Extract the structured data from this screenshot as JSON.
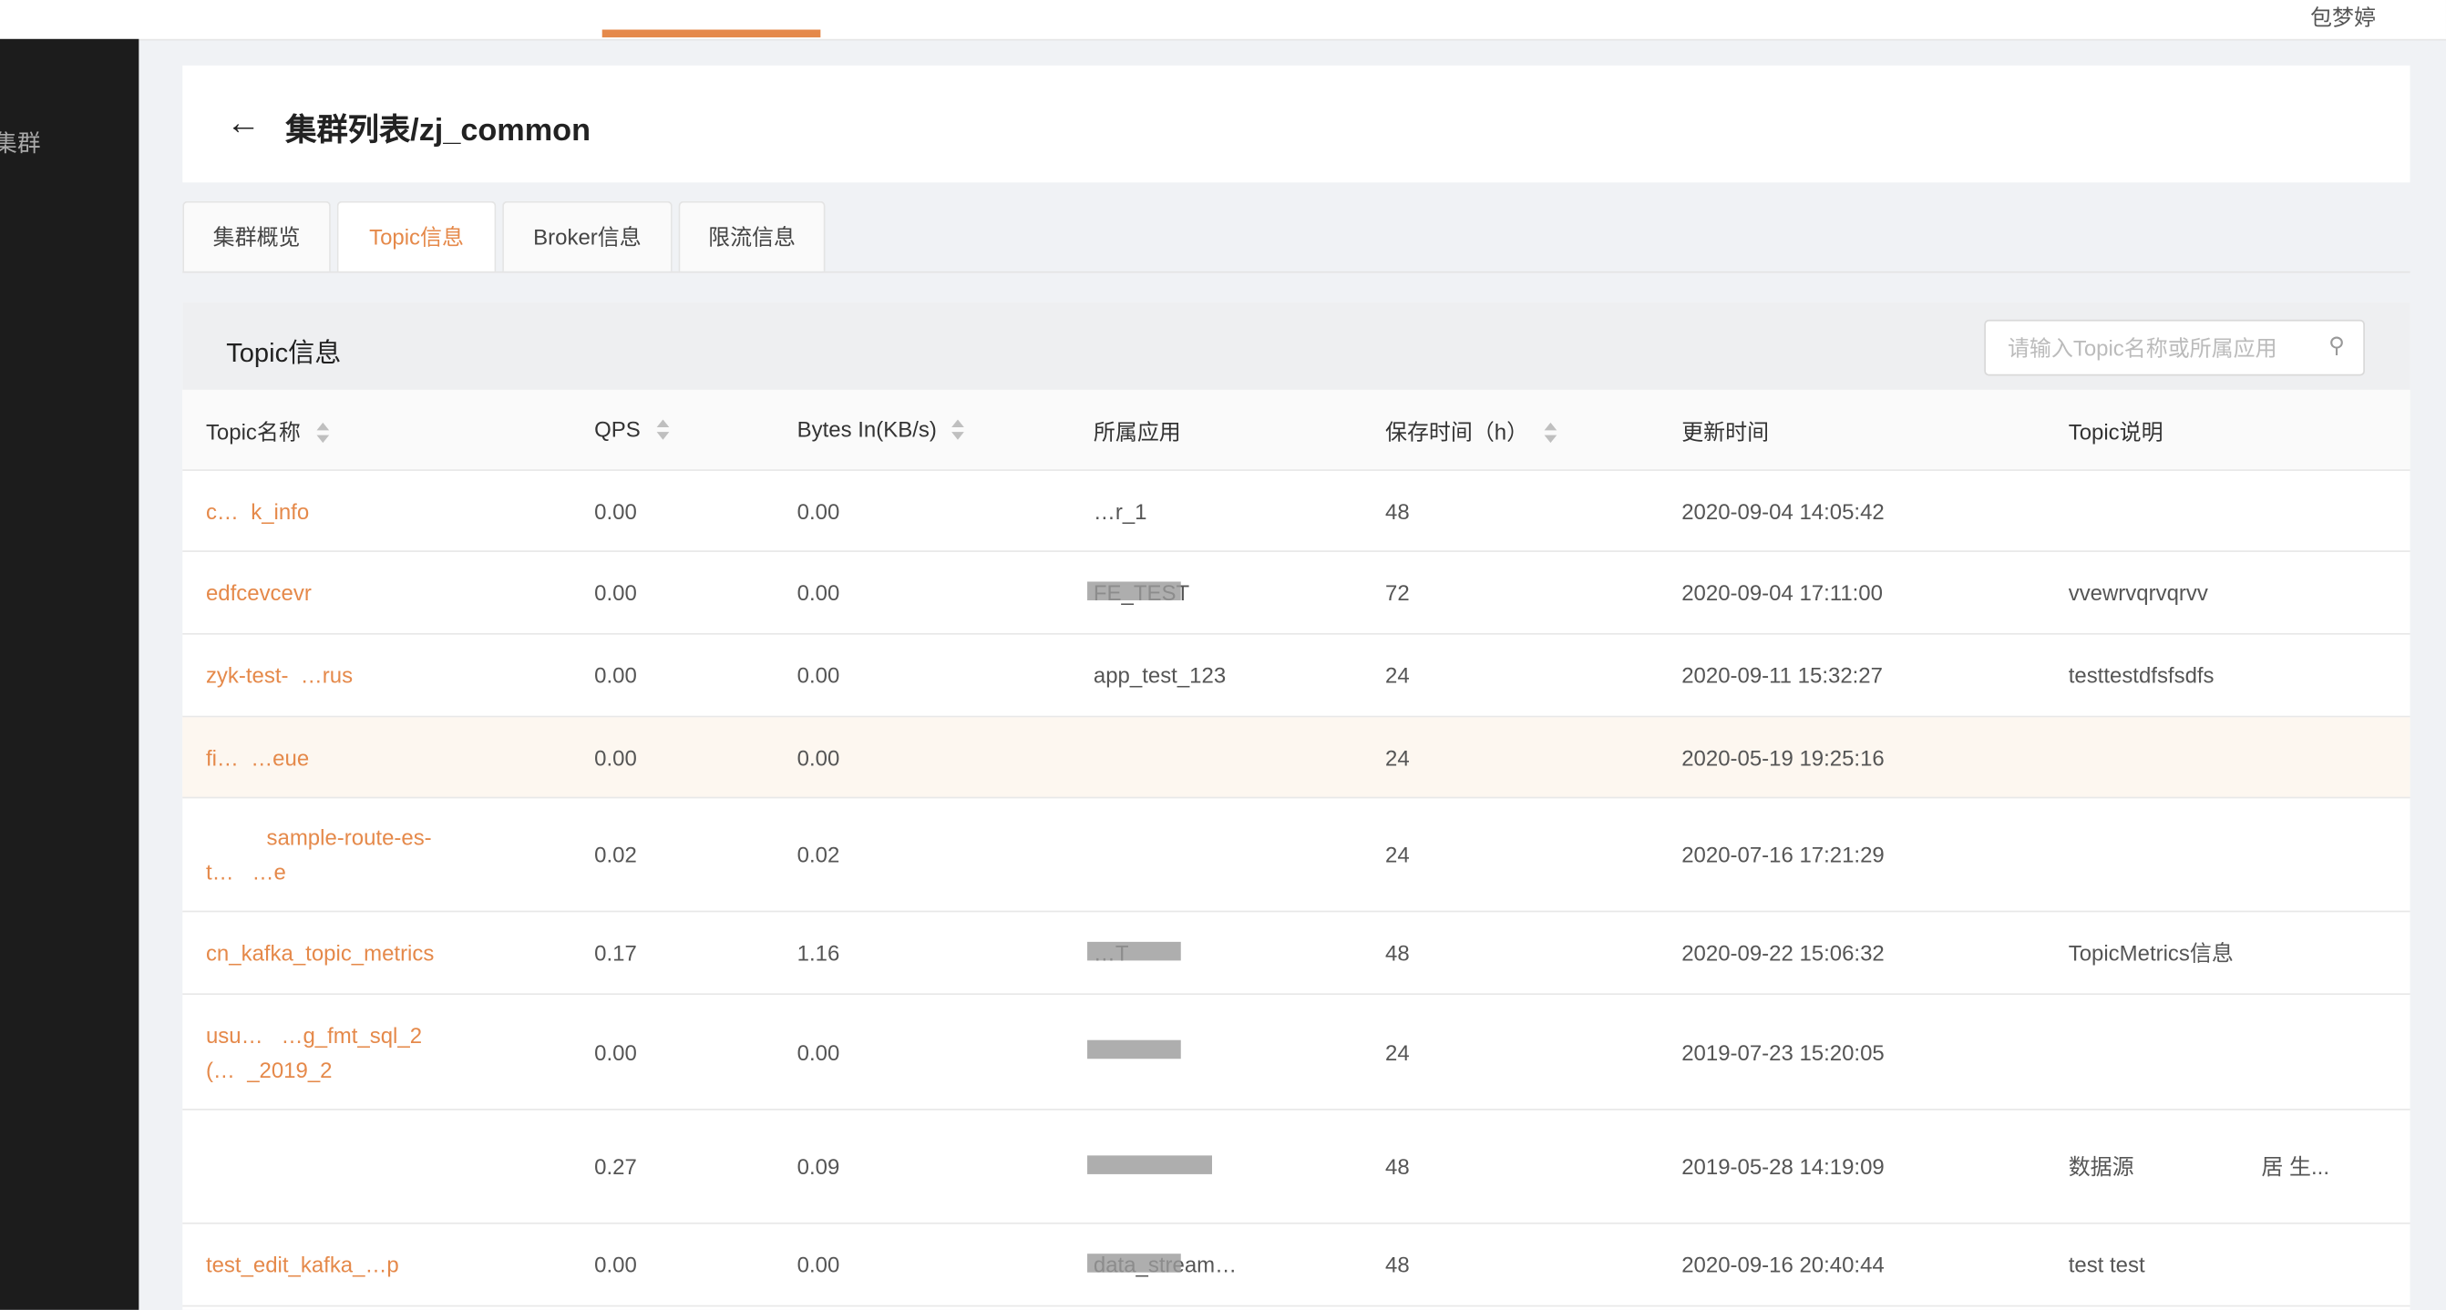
{
  "topbar": {
    "user": "包梦婷"
  },
  "sidebar": {
    "item": "集群"
  },
  "header": {
    "title": "集群列表/zj_common"
  },
  "tabs": [
    {
      "label": "集群概览"
    },
    {
      "label": "Topic信息"
    },
    {
      "label": "Broker信息"
    },
    {
      "label": "限流信息"
    }
  ],
  "active_tab": "Topic信息",
  "card": {
    "title": "Topic信息",
    "search_placeholder": "请输入Topic名称或所属应用"
  },
  "columns": [
    "Topic名称",
    "QPS",
    "Bytes In(KB/s)",
    "所属应用",
    "保存时间（h）",
    "更新时间",
    "Topic说明"
  ],
  "rows": [
    {
      "name": "c…  k_info",
      "qps": "0.00",
      "bytes": "0.00",
      "app": "…r_1",
      "retention": "48",
      "updated": "2020-09-04 14:05:42",
      "desc": ""
    },
    {
      "name": "edfcevcevr",
      "qps": "0.00",
      "bytes": "0.00",
      "app": "FE_TEST",
      "retention": "72",
      "updated": "2020-09-04 17:11:00",
      "desc": "vvewrvqrvqrvv"
    },
    {
      "name": "zyk-test-  …rus",
      "qps": "0.00",
      "bytes": "0.00",
      "app": "app_test_123",
      "retention": "24",
      "updated": "2020-09-11 15:32:27",
      "desc": "testtestdfsfsdfs"
    },
    {
      "name": "fi…  …eue",
      "qps": "0.00",
      "bytes": "0.00",
      "app": "",
      "retention": "24",
      "updated": "2020-05-19 19:25:16",
      "desc": ""
    },
    {
      "name": "          sample-route-es-\nt…   …e",
      "qps": "0.02",
      "bytes": "0.02",
      "app": "",
      "retention": "24",
      "updated": "2020-07-16 17:21:29",
      "desc": ""
    },
    {
      "name": "cn_kafka_topic_metrics",
      "qps": "0.17",
      "bytes": "1.16",
      "app": "…T",
      "retention": "48",
      "updated": "2020-09-22 15:06:32",
      "desc": "TopicMetrics信息"
    },
    {
      "name": "usu…   …g_fmt_sql_2\n(…  _2019_2",
      "qps": "0.00",
      "bytes": "0.00",
      "app": "",
      "retention": "24",
      "updated": "2019-07-23 15:20:05",
      "desc": ""
    },
    {
      "name": "",
      "qps": "0.27",
      "bytes": "0.09",
      "app": "",
      "retention": "48",
      "updated": "2019-05-28 14:19:09",
      "desc": "数据源                     居 生..."
    },
    {
      "name": "test_edit_kafka_…p",
      "qps": "0.00",
      "bytes": "0.00",
      "app": "data_stream…",
      "retention": "48",
      "updated": "2020-09-16 20:40:44",
      "desc": "test test"
    }
  ],
  "colors": {
    "accent": "#e5894a",
    "sidebar": "#1c1c1c",
    "highlight_row": "#fdf7f0"
  }
}
